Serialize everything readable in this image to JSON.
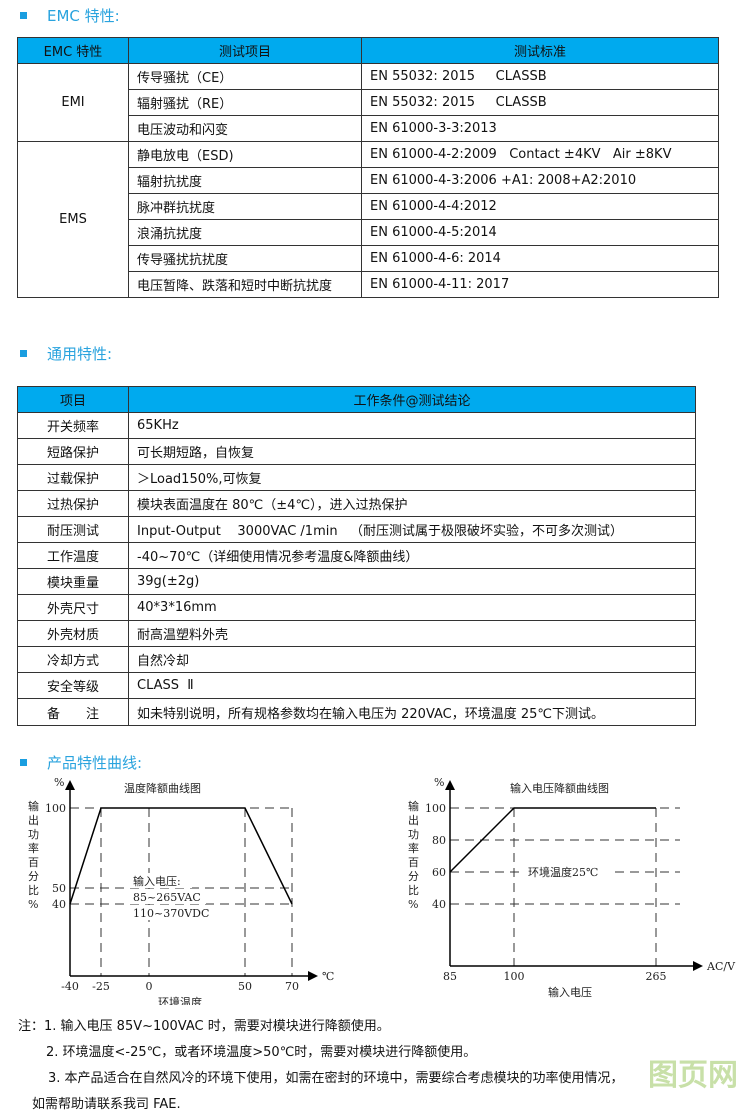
{
  "emc": {
    "heading": "EMC 特性:",
    "headers": [
      "EMC 特性",
      "测试项目",
      "测试标准"
    ],
    "groups": [
      {
        "name": "EMI",
        "rows": [
          [
            "传导骚扰（CE）",
            "EN 55032: 2015     CLASSB"
          ],
          [
            "辐射骚扰（RE）",
            "EN 55032: 2015     CLASSB"
          ],
          [
            "电压波动和闪变",
            "EN 61000-3-3:2013"
          ]
        ]
      },
      {
        "name": "EMS",
        "rows": [
          [
            "静电放电（ESD)",
            "EN 61000-4-2:2009   Contact ±4KV   Air ±8KV"
          ],
          [
            "辐射抗扰度",
            "EN 61000-4-3:2006 +A1: 2008+A2:2010"
          ],
          [
            "脉冲群抗扰度",
            "EN 61000-4-4:2012"
          ],
          [
            "浪涌抗扰度",
            "EN 61000-4-5:2014"
          ],
          [
            "传导骚扰抗扰度",
            "EN 61000-4-6: 2014"
          ],
          [
            "电压暂降、跌落和短时中断抗扰度",
            "EN 61000-4-11: 2017"
          ]
        ]
      }
    ]
  },
  "general": {
    "heading": "通用特性:",
    "headers": [
      "项目",
      "工作条件@测试结论"
    ],
    "rows": [
      [
        "开关频率",
        "65KHz"
      ],
      [
        "短路保护",
        "可长期短路，自恢复"
      ],
      [
        "过载保护",
        "＞Load150%,可恢复"
      ],
      [
        "过热保护",
        "模块表面温度在 80℃（±4℃），进入过热保护"
      ],
      [
        "耐压测试",
        "Input-Output    3000VAC /1min   （耐压测试属于极限破坏实验，不可多次测试）"
      ],
      [
        "工作温度",
        "-40~70℃（详细使用情况参考温度&降额曲线）"
      ],
      [
        "模块重量",
        "39g(±2g)"
      ],
      [
        "外壳尺寸",
        "40*3*16mm"
      ],
      [
        "外壳材质",
        "耐高温塑料外壳"
      ],
      [
        "冷却方式",
        "自然冷却"
      ],
      [
        "安全等级",
        "CLASS  Ⅱ"
      ],
      [
        "备　　注",
        "如未特别说明，所有规格参数均在输入电压为 220VAC，环境温度 25℃下测试。"
      ]
    ]
  },
  "curves_heading": "产品特性曲线:",
  "chart_data": [
    {
      "type": "line",
      "title": "温度降额曲线图",
      "xlabel": "环境温度",
      "x_unit": "℃",
      "ylabel": "输出功率百分比%",
      "y_unit": "%",
      "x_ticks": [
        -40,
        -25,
        0,
        50,
        70
      ],
      "y_ticks": [
        100,
        50,
        40
      ],
      "x": [
        -40,
        -25,
        50,
        70
      ],
      "y": [
        40,
        100,
        100,
        40
      ],
      "annotation": [
        "输入电压:",
        "85~265VAC",
        "110~370VDC"
      ],
      "grid": "dashed"
    },
    {
      "type": "line",
      "title": "输入电压降额曲线图",
      "xlabel": "输入电压",
      "x_unit": "AC/V",
      "ylabel": "输出功率百分比%",
      "y_unit": "%",
      "x_ticks": [
        85,
        100,
        265
      ],
      "y_ticks": [
        100,
        80,
        60,
        40
      ],
      "x": [
        85,
        100,
        265
      ],
      "y": [
        60,
        100,
        100
      ],
      "annotation": [
        "环境温度25℃"
      ],
      "grid": "dashed"
    }
  ],
  "notes": [
    "注：1. 输入电压 85V~100VAC 时，需要对模块进行降额使用。",
    "2. 环境温度<-25℃，或者环境温度>50℃时，需要对模块进行降额使用。",
    "3. 本产品适合在自然风冷的环境下使用，如需在密封的环境中，需要综合考虑模块的功率使用情况，",
    "如需帮助请联系我司 FAE."
  ],
  "watermark": "图页网®"
}
